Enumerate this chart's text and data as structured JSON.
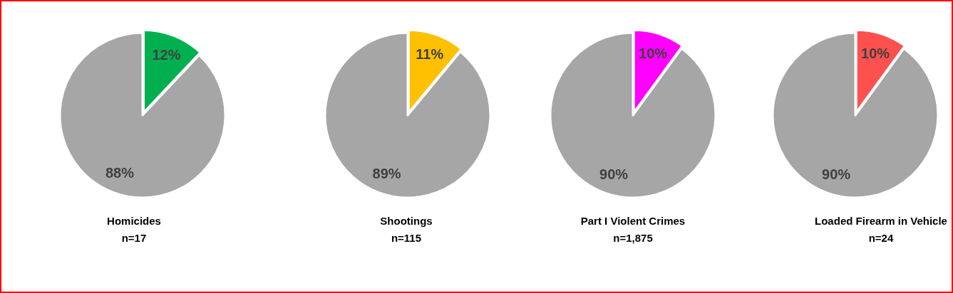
{
  "chart_data": [
    {
      "type": "pie",
      "title": "Homicides",
      "subtitle": "n=17",
      "categories": [
        null,
        null
      ],
      "values": [
        12,
        88
      ],
      "colors": [
        "#00b050",
        "#a6a6a6"
      ],
      "value_labels": [
        "12%",
        "88%"
      ]
    },
    {
      "type": "pie",
      "title": "Shootings",
      "subtitle": "n=115",
      "categories": [
        null,
        null
      ],
      "values": [
        11,
        89
      ],
      "colors": [
        "#ffc000",
        "#a6a6a6"
      ],
      "value_labels": [
        "11%",
        "89%"
      ]
    },
    {
      "type": "pie",
      "title": "Part I Violent Crimes",
      "subtitle": "n=1,875",
      "categories": [
        null,
        null
      ],
      "values": [
        10,
        90
      ],
      "colors": [
        "#ff00ff",
        "#a6a6a6"
      ],
      "value_labels": [
        "10%",
        "90%"
      ]
    },
    {
      "type": "pie",
      "title": "Loaded Firearm in Vehicle",
      "subtitle": "n=24",
      "categories": [
        null,
        null
      ],
      "values": [
        10,
        90
      ],
      "colors": [
        "#ff5050",
        "#a6a6a6"
      ],
      "value_labels": [
        "10%",
        "90%"
      ]
    }
  ]
}
